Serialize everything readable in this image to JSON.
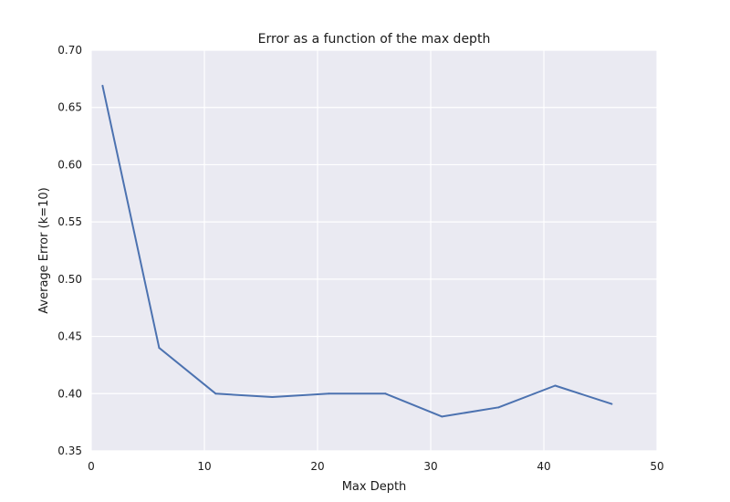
{
  "chart_data": {
    "type": "line",
    "title": "Error as a function of the max depth",
    "xlabel": "Max Depth",
    "ylabel": "Average Error (k=10)",
    "xlim": [
      0,
      50
    ],
    "ylim": [
      0.35,
      0.7
    ],
    "xticks": [
      "0",
      "10",
      "20",
      "30",
      "40",
      "50"
    ],
    "xtick_values": [
      0,
      10,
      20,
      30,
      40,
      50
    ],
    "yticks": [
      "0.35",
      "0.40",
      "0.45",
      "0.50",
      "0.55",
      "0.60",
      "0.65",
      "0.70"
    ],
    "ytick_values": [
      0.35,
      0.4,
      0.45,
      0.5,
      0.55,
      0.6,
      0.65,
      0.7
    ],
    "grid": true,
    "background_color": "#EAEAF2",
    "grid_color": "#FFFFFF",
    "series": [
      {
        "color": "#4C72B0",
        "x": [
          1,
          6,
          11,
          16,
          21,
          26,
          31,
          36,
          41,
          46
        ],
        "y": [
          0.669,
          0.44,
          0.4,
          0.397,
          0.4,
          0.4,
          0.38,
          0.388,
          0.407,
          0.391
        ]
      }
    ]
  }
}
